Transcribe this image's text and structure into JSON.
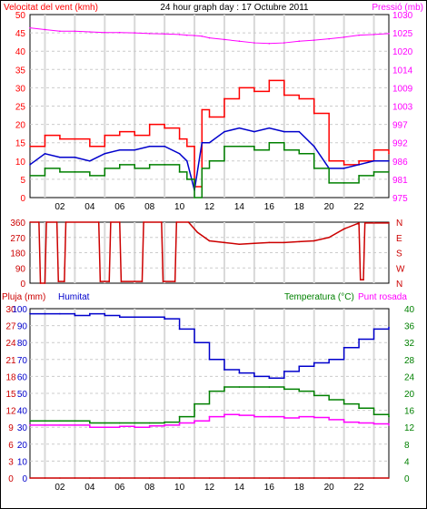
{
  "header": {
    "wind_label": "Velocitat del vent (kmh)",
    "title": "24 hour graph day : 17 Octubre 2011",
    "pressure_label": "Pressió (mb)"
  },
  "colors": {
    "wind_max": "#ff0000",
    "wind_avg": "#0000cc",
    "wind_min": "#008000",
    "pressure": "#ff00ff",
    "direction": "#cc0000",
    "humidity": "#0000cc",
    "temperature": "#008000",
    "dewpoint": "#ff00ff",
    "rain": "#cc0000",
    "grid": "#cccccc",
    "hour_band": "#d8d8d8"
  },
  "x_axis": {
    "ticks": [
      "02",
      "04",
      "06",
      "08",
      "10",
      "12",
      "14",
      "16",
      "18",
      "20",
      "22"
    ]
  },
  "chart_data": [
    {
      "id": "wind",
      "type": "line",
      "y_left": {
        "label": "Velocitat del vent (kmh)",
        "ylim": [
          0,
          50
        ],
        "ticks": [
          "0",
          "5",
          "10",
          "15",
          "20",
          "25",
          "30",
          "35",
          "40",
          "45",
          "50"
        ]
      },
      "y_right": {
        "label": "Pressió (mb)",
        "ylim": [
          975,
          1030
        ],
        "ticks": [
          "975",
          "981",
          "986",
          "992",
          "997",
          "1003",
          "1009",
          "1014",
          "1020",
          "1025",
          "1030"
        ]
      },
      "x_hours": [
        0,
        1,
        2,
        3,
        4,
        5,
        6,
        7,
        8,
        9,
        10,
        10.5,
        11,
        11.5,
        12,
        13,
        14,
        15,
        16,
        17,
        18,
        19,
        20,
        21,
        22,
        23,
        24
      ],
      "series": [
        {
          "name": "max",
          "axis": "left",
          "values": [
            14,
            17,
            16,
            16,
            14,
            17,
            18,
            17,
            20,
            19,
            16,
            14,
            3,
            24,
            22,
            27,
            30,
            29,
            32,
            28,
            27,
            23,
            10,
            9,
            10,
            13,
            12
          ]
        },
        {
          "name": "avg",
          "axis": "left",
          "values": [
            9,
            12,
            11,
            11,
            10,
            12,
            13,
            13,
            14,
            14,
            12,
            10,
            2,
            15,
            15,
            18,
            19,
            18,
            19,
            18,
            18,
            14,
            8,
            8,
            9,
            10,
            10
          ]
        },
        {
          "name": "min",
          "axis": "left",
          "values": [
            6,
            8,
            7,
            7,
            6,
            8,
            9,
            8,
            9,
            9,
            7,
            5,
            0,
            8,
            10,
            14,
            14,
            13,
            15,
            13,
            12,
            8,
            4,
            4,
            6,
            7,
            7
          ]
        },
        {
          "name": "pressure",
          "axis": "right",
          "values": [
            1026,
            1025.5,
            1025,
            1025,
            1024.8,
            1024.6,
            1024.6,
            1024.5,
            1024.3,
            1024.2,
            1024,
            1023.8,
            1023.7,
            1023.5,
            1023,
            1022.5,
            1022,
            1021.5,
            1021.3,
            1021.5,
            1022,
            1022.3,
            1022.7,
            1023.2,
            1023.8,
            1024,
            1024.3
          ]
        }
      ]
    },
    {
      "id": "direction",
      "type": "line",
      "y_left": {
        "ticks": [
          "0",
          "90",
          "180",
          "270",
          "360"
        ],
        "ylim": [
          0,
          360
        ]
      },
      "y_right_labels": [
        "N",
        "W",
        "S",
        "E",
        "N"
      ],
      "x_hours": [
        0,
        0.6,
        0.7,
        1.0,
        1.1,
        1.8,
        1.9,
        2.3,
        2.4,
        4.6,
        4.7,
        5.3,
        5.4,
        6.0,
        6.1,
        7.5,
        7.6,
        8.8,
        8.9,
        9.7,
        9.8,
        10.6,
        11.2,
        12,
        13,
        14,
        15,
        16,
        17,
        18,
        19,
        20,
        21,
        22,
        22.1,
        22.3,
        22.4,
        24
      ],
      "series": [
        {
          "name": "direction",
          "values": [
            360,
            360,
            0,
            0,
            360,
            360,
            10,
            10,
            360,
            360,
            10,
            10,
            360,
            360,
            10,
            10,
            360,
            360,
            10,
            10,
            360,
            360,
            300,
            250,
            240,
            230,
            235,
            240,
            240,
            245,
            250,
            270,
            320,
            355,
            20,
            20,
            355,
            355
          ]
        }
      ]
    },
    {
      "id": "humidity_temp",
      "type": "line",
      "labels": {
        "rain": "Pluja (mm)",
        "humidity": "Humitat",
        "temp": "Temperatura (°C)",
        "dew": "Punt rosada"
      },
      "y_left_rain": {
        "ylim": [
          0,
          30
        ],
        "ticks": [
          "0",
          "3",
          "6",
          "9",
          "12",
          "15",
          "18",
          "21",
          "24",
          "27",
          "30"
        ]
      },
      "y_left_hum": {
        "ylim": [
          0,
          100
        ],
        "ticks": [
          "0",
          "10",
          "20",
          "30",
          "40",
          "50",
          "60",
          "70",
          "80",
          "90",
          "100"
        ]
      },
      "y_right": {
        "ylim": [
          0,
          40
        ],
        "ticks": [
          "0",
          "4",
          "8",
          "12",
          "16",
          "20",
          "24",
          "28",
          "32",
          "36",
          "40"
        ]
      },
      "x_hours": [
        0,
        1,
        2,
        3,
        4,
        5,
        6,
        7,
        8,
        9,
        10,
        11,
        12,
        13,
        14,
        15,
        16,
        17,
        18,
        19,
        20,
        21,
        22,
        23,
        24
      ],
      "series": [
        {
          "name": "humidity",
          "values": [
            97,
            97,
            97,
            96,
            97,
            96,
            95,
            95,
            95,
            94,
            88,
            80,
            70,
            64,
            62,
            60,
            59,
            63,
            66,
            68,
            70,
            77,
            82,
            88,
            89
          ]
        },
        {
          "name": "temperature",
          "values": [
            13.5,
            13.5,
            13.5,
            13.5,
            13,
            13,
            13,
            13,
            13,
            13.2,
            14.5,
            17.5,
            20.5,
            21.5,
            21.5,
            21.5,
            21.5,
            21,
            20.5,
            19.5,
            18.5,
            17.5,
            16.5,
            15,
            14.5
          ]
        },
        {
          "name": "dewpoint",
          "values": [
            12.5,
            12.5,
            12.5,
            12.5,
            12,
            12,
            12.2,
            12,
            12.3,
            12.5,
            13,
            13.5,
            14.5,
            15,
            14.8,
            14.5,
            14.5,
            14.2,
            14.5,
            14.3,
            13.8,
            13.2,
            13,
            12.8,
            12.5
          ]
        },
        {
          "name": "rain",
          "values": [
            0,
            0,
            0,
            0,
            0,
            0,
            0,
            0,
            0,
            0,
            0,
            0,
            0,
            0,
            0,
            0,
            0,
            0,
            0,
            0,
            0,
            0,
            0,
            0,
            0
          ]
        }
      ]
    }
  ]
}
